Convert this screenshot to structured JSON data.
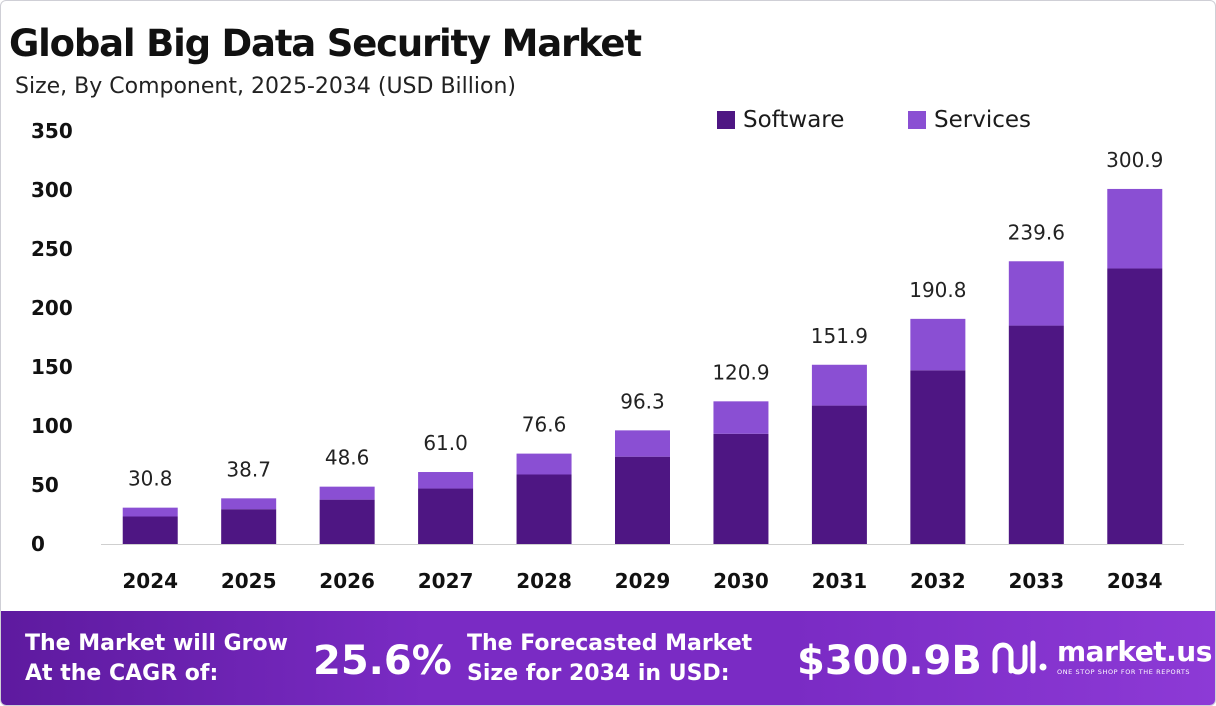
{
  "title": "Global Big Data Security Market",
  "subtitle": "Size, By Component, 2025-2034 (USD Billion)",
  "colors": {
    "software": "#4e1683",
    "services": "#8a4fd3",
    "footer": "#7a2bc4",
    "axis": "#cfcfcf"
  },
  "chart_data": {
    "type": "bar",
    "stacked": true,
    "categories": [
      "2024",
      "2025",
      "2026",
      "2027",
      "2028",
      "2029",
      "2030",
      "2031",
      "2032",
      "2033",
      "2034"
    ],
    "series": [
      {
        "name": "Software",
        "color": "#4e1683",
        "values": [
          23.3,
          29.5,
          37.6,
          47.0,
          58.9,
          74.0,
          93.4,
          117.3,
          147.2,
          185.1,
          233.5
        ]
      },
      {
        "name": "Services",
        "color": "#8a4fd3",
        "values": [
          7.5,
          9.2,
          11.0,
          14.0,
          17.7,
          22.3,
          27.5,
          34.6,
          43.6,
          54.5,
          67.4
        ]
      }
    ],
    "totals": [
      "30.8",
      "38.7",
      "48.6",
      "61.0",
      "76.6",
      "96.3",
      "120.9",
      "151.9",
      "190.8",
      "239.6",
      "300.9"
    ],
    "yticks": [
      0,
      50,
      100,
      150,
      200,
      250,
      300,
      350
    ],
    "ylim": [
      0,
      350
    ],
    "legend_position": "top-right"
  },
  "footer": {
    "cagr_label_line1": "The Market will Grow",
    "cagr_label_line2": "At the CAGR of:",
    "cagr_value": "25.6%",
    "forecast_label_line1": "The Forecasted Market",
    "forecast_label_line2": "Size for 2034 in USD:",
    "forecast_value": "$300.9B",
    "brand_name": "market.us",
    "brand_tagline": "ONE STOP SHOP FOR THE REPORTS",
    "brand_icon": "market-us-logo-icon"
  }
}
